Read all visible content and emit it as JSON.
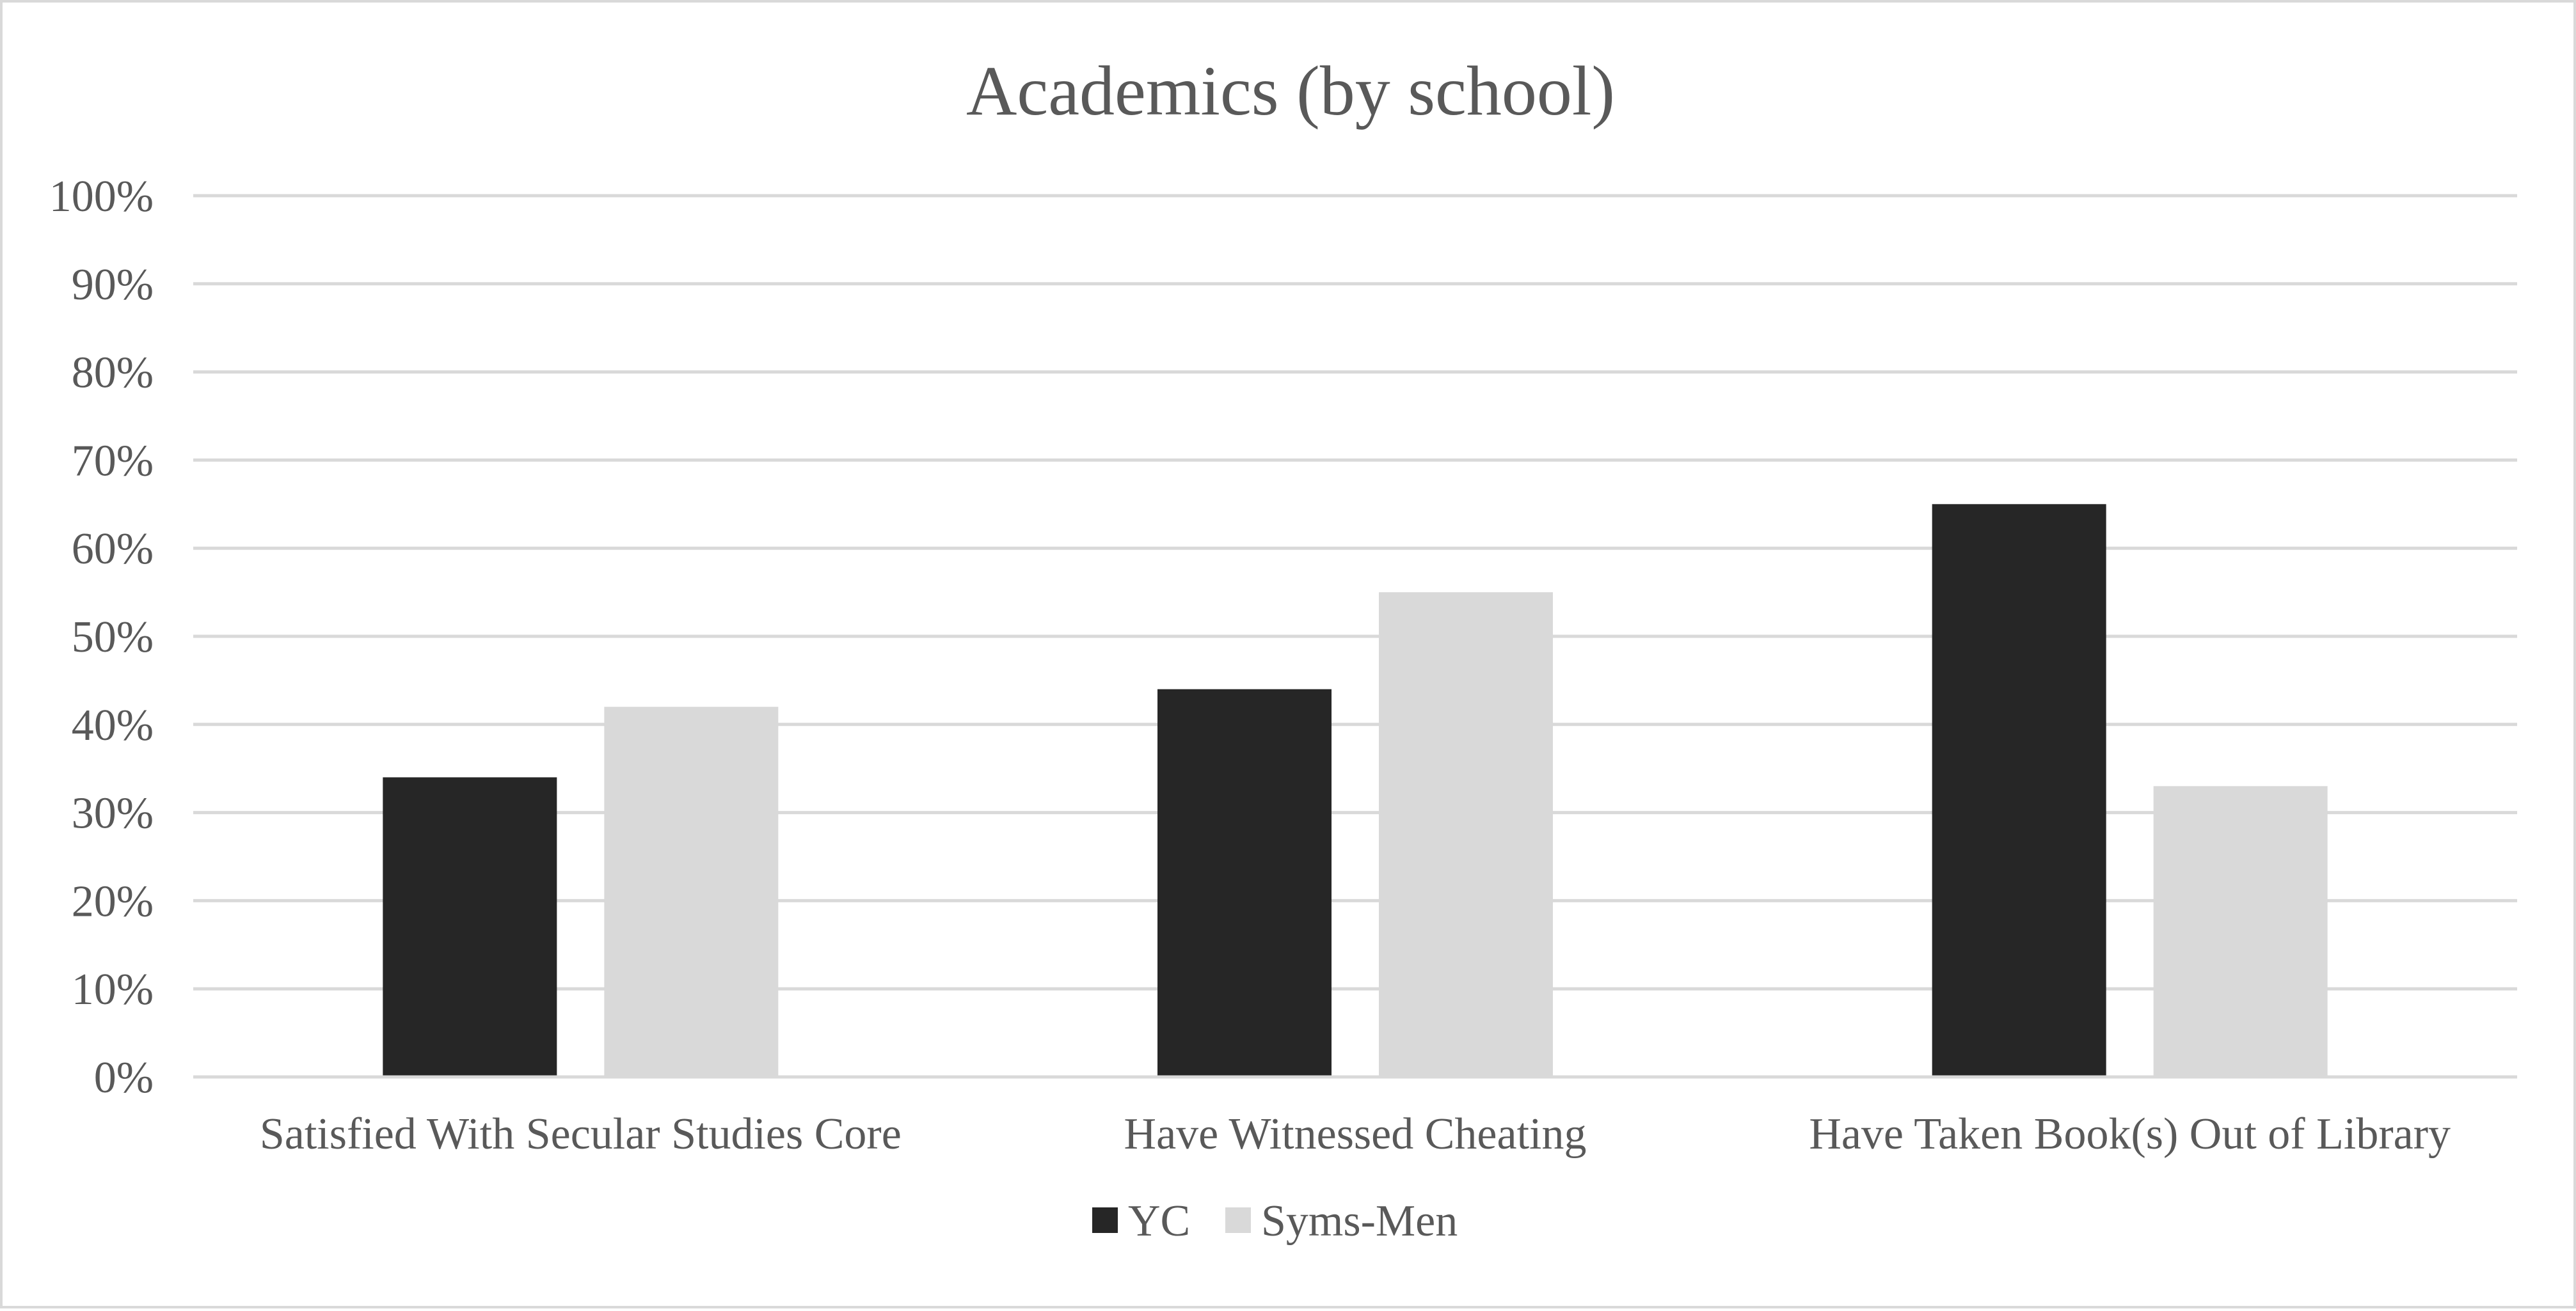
{
  "chart_data": {
    "type": "bar",
    "title": "Academics (by school)",
    "xlabel": "",
    "ylabel": "",
    "categories": [
      "Satisfied With Secular Studies Core",
      "Have Witnessed Cheating",
      "Have Taken Book(s) Out of Library"
    ],
    "series": [
      {
        "name": "YC",
        "color": "#262626",
        "values": [
          34,
          44,
          65
        ]
      },
      {
        "name": "Syms-Men",
        "color": "#d9d9d9",
        "values": [
          42,
          55,
          33
        ]
      }
    ],
    "ylim": [
      0,
      100
    ],
    "yticks": [
      "0%",
      "10%",
      "20%",
      "30%",
      "40%",
      "50%",
      "60%",
      "70%",
      "80%",
      "90%",
      "100%"
    ],
    "grid": true,
    "gridColor": "#d9d9d9",
    "legend_position": "bottom"
  }
}
